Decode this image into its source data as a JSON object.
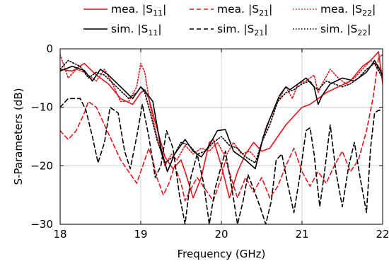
{
  "chart_data": {
    "type": "line",
    "xlabel": "Frequency (GHz)",
    "ylabel": "S-Parameters (dB)",
    "xlim": [
      18,
      22
    ],
    "ylim": [
      -30,
      0
    ],
    "x_ticks": [
      "18",
      "19",
      "20",
      "21",
      "22"
    ],
    "y_ticks": [
      "0",
      "−10",
      "−20",
      "−30"
    ],
    "grid": true,
    "legend": {
      "placement": "top",
      "rows": [
        [
          {
            "prefix": "mea. |S",
            "sub": "11",
            "suffix": "|"
          },
          {
            "prefix": "mea. |S",
            "sub": "21",
            "suffix": "|"
          },
          {
            "prefix": "mea. |S",
            "sub": "22",
            "suffix": "|"
          }
        ],
        [
          {
            "prefix": "sim. |S",
            "sub": "11",
            "suffix": "|"
          },
          {
            "prefix": "sim. |S",
            "sub": "21",
            "suffix": "|"
          },
          {
            "prefix": "sim. |S",
            "sub": "22",
            "suffix": "|"
          }
        ]
      ]
    },
    "series": [
      {
        "name": "mea. |S11|",
        "color": "#e8141b",
        "dash": "solid",
        "points": [
          [
            18,
            -3.5
          ],
          [
            18.15,
            -3.8
          ],
          [
            18.3,
            -2.5
          ],
          [
            18.45,
            -4.5
          ],
          [
            18.6,
            -6
          ],
          [
            18.75,
            -8.5
          ],
          [
            18.9,
            -9.5
          ],
          [
            19.0,
            -7.5
          ],
          [
            19.05,
            -7
          ],
          [
            19.1,
            -8.5
          ],
          [
            19.2,
            -13.5
          ],
          [
            19.3,
            -18.5
          ],
          [
            19.4,
            -20.5
          ],
          [
            19.5,
            -19
          ],
          [
            19.55,
            -21
          ],
          [
            19.65,
            -25.5
          ],
          [
            19.75,
            -22
          ],
          [
            19.85,
            -16
          ],
          [
            19.9,
            -15.5
          ],
          [
            20.0,
            -20
          ],
          [
            20.1,
            -25.5
          ],
          [
            20.2,
            -21
          ],
          [
            20.3,
            -18
          ],
          [
            20.4,
            -16
          ],
          [
            20.5,
            -17.5
          ],
          [
            20.6,
            -17
          ],
          [
            20.7,
            -15
          ],
          [
            20.8,
            -13
          ],
          [
            20.9,
            -11.5
          ],
          [
            21.0,
            -10
          ],
          [
            21.1,
            -9.5
          ],
          [
            21.2,
            -8.5
          ],
          [
            21.3,
            -7.5
          ],
          [
            21.45,
            -6.5
          ],
          [
            21.6,
            -5.5
          ],
          [
            21.75,
            -3
          ],
          [
            21.85,
            -2
          ],
          [
            21.95,
            -0.5
          ],
          [
            22.0,
            -6
          ]
        ]
      },
      {
        "name": "mea. |S21|",
        "color": "#e8141b",
        "dash": "dashed",
        "points": [
          [
            18,
            -14
          ],
          [
            18.1,
            -15.5
          ],
          [
            18.2,
            -14
          ],
          [
            18.3,
            -11
          ],
          [
            18.35,
            -9
          ],
          [
            18.45,
            -10
          ],
          [
            18.55,
            -13
          ],
          [
            18.65,
            -16
          ],
          [
            18.75,
            -19
          ],
          [
            18.85,
            -21
          ],
          [
            18.95,
            -23
          ],
          [
            19.05,
            -19
          ],
          [
            19.1,
            -17
          ],
          [
            19.15,
            -19
          ],
          [
            19.2,
            -22
          ],
          [
            19.28,
            -25
          ],
          [
            19.35,
            -23
          ],
          [
            19.42,
            -20
          ],
          [
            19.5,
            -23
          ],
          [
            19.55,
            -26
          ],
          [
            19.62,
            -24
          ],
          [
            19.7,
            -22
          ],
          [
            19.8,
            -24
          ],
          [
            19.9,
            -26
          ],
          [
            20.0,
            -22
          ],
          [
            20.05,
            -19
          ],
          [
            20.12,
            -22
          ],
          [
            20.2,
            -25.5
          ],
          [
            20.3,
            -22
          ],
          [
            20.4,
            -24.5
          ],
          [
            20.5,
            -22
          ],
          [
            20.6,
            -25.5
          ],
          [
            20.7,
            -23.5
          ],
          [
            20.8,
            -20
          ],
          [
            20.9,
            -17
          ],
          [
            21.0,
            -21
          ],
          [
            21.1,
            -23.5
          ],
          [
            21.2,
            -21
          ],
          [
            21.3,
            -23
          ],
          [
            21.4,
            -20
          ],
          [
            21.5,
            -17.5
          ],
          [
            21.6,
            -21
          ],
          [
            21.7,
            -19
          ],
          [
            21.8,
            -14
          ],
          [
            21.88,
            -8.5
          ],
          [
            21.95,
            -1.5
          ],
          [
            22.0,
            -1
          ]
        ]
      },
      {
        "name": "mea. |S22|",
        "color": "#e8141b",
        "dash": "dotted",
        "points": [
          [
            18,
            -1
          ],
          [
            18.1,
            -5
          ],
          [
            18.2,
            -3.5
          ],
          [
            18.3,
            -4
          ],
          [
            18.45,
            -5.5
          ],
          [
            18.55,
            -3.5
          ],
          [
            18.65,
            -6
          ],
          [
            18.75,
            -9
          ],
          [
            18.85,
            -9
          ],
          [
            18.95,
            -6.5
          ],
          [
            19.0,
            -2.5
          ],
          [
            19.05,
            -4
          ],
          [
            19.12,
            -10
          ],
          [
            19.2,
            -15
          ],
          [
            19.3,
            -20
          ],
          [
            19.38,
            -18
          ],
          [
            19.45,
            -19
          ],
          [
            19.55,
            -16.5
          ],
          [
            19.65,
            -18
          ],
          [
            19.75,
            -17
          ],
          [
            19.85,
            -17.5
          ],
          [
            19.95,
            -16
          ],
          [
            20.05,
            -18.5
          ],
          [
            20.15,
            -16
          ],
          [
            20.25,
            -18
          ],
          [
            20.35,
            -17.5
          ],
          [
            20.45,
            -19
          ],
          [
            20.55,
            -13.5
          ],
          [
            20.7,
            -9
          ],
          [
            20.8,
            -6.5
          ],
          [
            20.88,
            -8.5
          ],
          [
            20.95,
            -6
          ],
          [
            21.05,
            -5.5
          ],
          [
            21.15,
            -4.5
          ],
          [
            21.2,
            -7.5
          ],
          [
            21.25,
            -6
          ],
          [
            21.35,
            -3.5
          ],
          [
            21.45,
            -5
          ],
          [
            21.55,
            -6
          ],
          [
            21.65,
            -5
          ],
          [
            21.75,
            -3.5
          ],
          [
            21.85,
            -2
          ],
          [
            21.95,
            -3
          ],
          [
            22.0,
            -4
          ]
        ]
      },
      {
        "name": "sim. |S11|",
        "color": "#000000",
        "dash": "solid",
        "points": [
          [
            18,
            -3.8
          ],
          [
            18.15,
            -3
          ],
          [
            18.3,
            -3.7
          ],
          [
            18.4,
            -5.5
          ],
          [
            18.5,
            -3.5
          ],
          [
            18.6,
            -4.5
          ],
          [
            18.75,
            -6.5
          ],
          [
            18.9,
            -8.5
          ],
          [
            19.0,
            -6.5
          ],
          [
            19.05,
            -7.2
          ],
          [
            19.15,
            -9
          ],
          [
            19.25,
            -17
          ],
          [
            19.33,
            -21
          ],
          [
            19.42,
            -18
          ],
          [
            19.55,
            -15.5
          ],
          [
            19.65,
            -17.5
          ],
          [
            19.75,
            -18.5
          ],
          [
            19.85,
            -16.5
          ],
          [
            19.95,
            -14
          ],
          [
            20.05,
            -13.8
          ],
          [
            20.15,
            -17.5
          ],
          [
            20.3,
            -19
          ],
          [
            20.42,
            -20.5
          ],
          [
            20.52,
            -15
          ],
          [
            20.6,
            -12
          ],
          [
            20.72,
            -8
          ],
          [
            20.8,
            -6.5
          ],
          [
            20.85,
            -7
          ],
          [
            20.95,
            -6
          ],
          [
            21.05,
            -5
          ],
          [
            21.15,
            -6.5
          ],
          [
            21.2,
            -9.5
          ],
          [
            21.25,
            -8
          ],
          [
            21.35,
            -6
          ],
          [
            21.5,
            -5
          ],
          [
            21.65,
            -5.5
          ],
          [
            21.8,
            -4
          ],
          [
            21.9,
            -2
          ],
          [
            22.0,
            -4.5
          ]
        ]
      },
      {
        "name": "sim. |S21|",
        "color": "#000000",
        "dash": "dashed",
        "points": [
          [
            18,
            -10
          ],
          [
            18.1,
            -8.5
          ],
          [
            18.25,
            -8.5
          ],
          [
            18.32,
            -10.5
          ],
          [
            18.4,
            -15
          ],
          [
            18.47,
            -19.5
          ],
          [
            18.55,
            -16
          ],
          [
            18.62,
            -10
          ],
          [
            18.72,
            -11
          ],
          [
            18.8,
            -17.5
          ],
          [
            18.87,
            -20.5
          ],
          [
            18.95,
            -15
          ],
          [
            19.02,
            -9.5
          ],
          [
            19.1,
            -15
          ],
          [
            19.18,
            -22
          ],
          [
            19.25,
            -20
          ],
          [
            19.32,
            -14
          ],
          [
            19.4,
            -17
          ],
          [
            19.48,
            -25
          ],
          [
            19.55,
            -30
          ],
          [
            19.62,
            -22
          ],
          [
            19.7,
            -18
          ],
          [
            19.78,
            -23
          ],
          [
            19.85,
            -30
          ],
          [
            19.92,
            -24
          ],
          [
            20.0,
            -20
          ],
          [
            20.05,
            -17.5
          ],
          [
            20.12,
            -23
          ],
          [
            20.2,
            -30
          ],
          [
            20.27,
            -26
          ],
          [
            20.33,
            -21.5
          ],
          [
            20.4,
            -24
          ],
          [
            20.48,
            -27
          ],
          [
            20.55,
            -30
          ],
          [
            20.62,
            -26
          ],
          [
            20.68,
            -19
          ],
          [
            20.75,
            -18
          ],
          [
            20.82,
            -23
          ],
          [
            20.9,
            -28
          ],
          [
            20.97,
            -22
          ],
          [
            21.05,
            -14
          ],
          [
            21.1,
            -13.5
          ],
          [
            21.15,
            -18
          ],
          [
            21.22,
            -27
          ],
          [
            21.28,
            -21
          ],
          [
            21.35,
            -13
          ],
          [
            21.42,
            -21
          ],
          [
            21.5,
            -27
          ],
          [
            21.58,
            -20
          ],
          [
            21.65,
            -16
          ],
          [
            21.72,
            -22
          ],
          [
            21.8,
            -28
          ],
          [
            21.85,
            -17
          ],
          [
            21.9,
            -11
          ],
          [
            21.95,
            -10.5
          ],
          [
            22.0,
            -10.5
          ]
        ]
      },
      {
        "name": "sim. |S22|",
        "color": "#000000",
        "dash": "dotted",
        "points": [
          [
            18,
            -3.5
          ],
          [
            18.1,
            -2
          ],
          [
            18.25,
            -3
          ],
          [
            18.35,
            -5
          ],
          [
            18.45,
            -4
          ],
          [
            18.55,
            -4.5
          ],
          [
            18.7,
            -6.5
          ],
          [
            18.85,
            -8.5
          ],
          [
            18.95,
            -7.5
          ],
          [
            19.0,
            -6.5
          ],
          [
            19.05,
            -7.5
          ],
          [
            19.12,
            -11
          ],
          [
            19.2,
            -15.5
          ],
          [
            19.3,
            -19.5
          ],
          [
            19.4,
            -18.5
          ],
          [
            19.5,
            -16
          ],
          [
            19.6,
            -16.5
          ],
          [
            19.7,
            -18
          ],
          [
            19.8,
            -17.5
          ],
          [
            19.9,
            -16
          ],
          [
            20.0,
            -15
          ],
          [
            20.1,
            -16.5
          ],
          [
            20.2,
            -17
          ],
          [
            20.3,
            -18.5
          ],
          [
            20.42,
            -19.5
          ],
          [
            20.5,
            -16
          ],
          [
            20.6,
            -13
          ],
          [
            20.7,
            -9
          ],
          [
            20.8,
            -7.5
          ],
          [
            20.9,
            -7
          ],
          [
            21.0,
            -6
          ],
          [
            21.1,
            -5.5
          ],
          [
            21.15,
            -6.5
          ],
          [
            21.2,
            -7
          ],
          [
            21.3,
            -5.5
          ],
          [
            21.4,
            -6
          ],
          [
            21.5,
            -6.5
          ],
          [
            21.6,
            -6
          ],
          [
            21.7,
            -5
          ],
          [
            21.8,
            -3.5
          ],
          [
            21.9,
            -2.5
          ],
          [
            22.0,
            -5
          ]
        ]
      }
    ]
  }
}
